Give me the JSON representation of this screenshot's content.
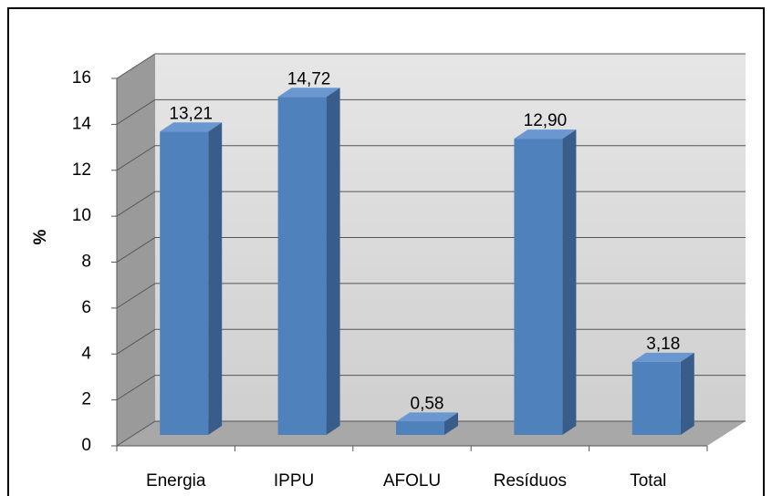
{
  "chart_data": {
    "type": "bar3d",
    "y_label": "%",
    "categories": [
      "Energia",
      "IPPU",
      "AFOLU",
      "Resíduos",
      "Total"
    ],
    "values": [
      13.21,
      14.72,
      0.58,
      12.9,
      3.18
    ],
    "value_labels": [
      "13,21",
      "14,72",
      "0,58",
      "12,90",
      "3,18"
    ],
    "color": "#4f81bd",
    "ylim": [
      0,
      16
    ],
    "yticks": [
      0,
      2,
      4,
      6,
      8,
      10,
      12,
      14,
      16
    ],
    "grid": true
  }
}
